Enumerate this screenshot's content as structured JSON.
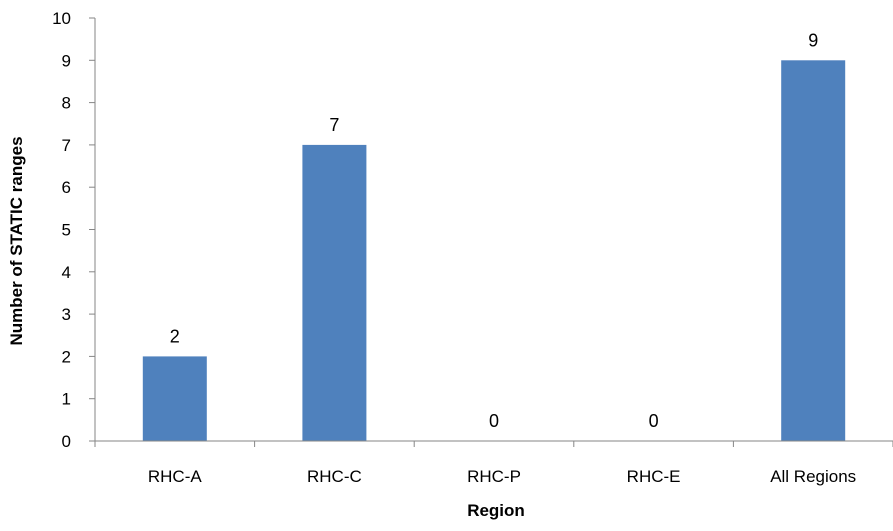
{
  "chart_data": {
    "type": "bar",
    "title": "",
    "xlabel": "Region",
    "ylabel": "Number of STATIC ranges",
    "categories": [
      "RHC-A",
      "RHC-C",
      "RHC-P",
      "RHC-E",
      "All Regions"
    ],
    "values": [
      2,
      7,
      0,
      0,
      9
    ],
    "data_labels": [
      "2",
      "7",
      "0",
      "0",
      "9"
    ],
    "ylim": [
      0,
      10
    ],
    "yticks": [
      0,
      1,
      2,
      3,
      4,
      5,
      6,
      7,
      8,
      9,
      10
    ],
    "grid": false,
    "legend": "none",
    "bar_color": "#4F81BD"
  }
}
